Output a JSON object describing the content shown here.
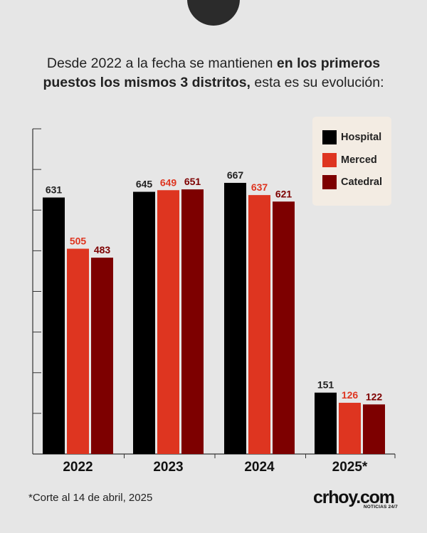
{
  "headline": {
    "part1": "Desde 2022 a la fecha se mantienen ",
    "bold": "en los primeros puestos los mismos 3 distritos,",
    "part2": " esta es su evolución:"
  },
  "footnote": "*Corte al 14 de abril, 2025",
  "logo": {
    "brand": "crhoy.com",
    "tagline": "NOTICIAS 24/7"
  },
  "colors": {
    "background": "#e6e6e6",
    "legend_bg": "#f3ece3"
  },
  "chart_data": {
    "type": "bar",
    "categories": [
      "2022",
      "2023",
      "2024",
      "2025*"
    ],
    "series": [
      {
        "name": "Hospital",
        "color": "#000000",
        "label_color": "#222222",
        "values": [
          631,
          645,
          667,
          151
        ]
      },
      {
        "name": "Merced",
        "color": "#de3520",
        "label_color": "#de3520",
        "values": [
          505,
          649,
          637,
          126
        ]
      },
      {
        "name": "Catedral",
        "color": "#7d0000",
        "label_color": "#7d0000",
        "values": [
          483,
          651,
          621,
          122
        ]
      }
    ],
    "ylim": [
      0,
      800
    ],
    "y_tick_step": 100,
    "show_y_tick_labels": false,
    "legend_position": "top-right",
    "data_labels": true
  }
}
